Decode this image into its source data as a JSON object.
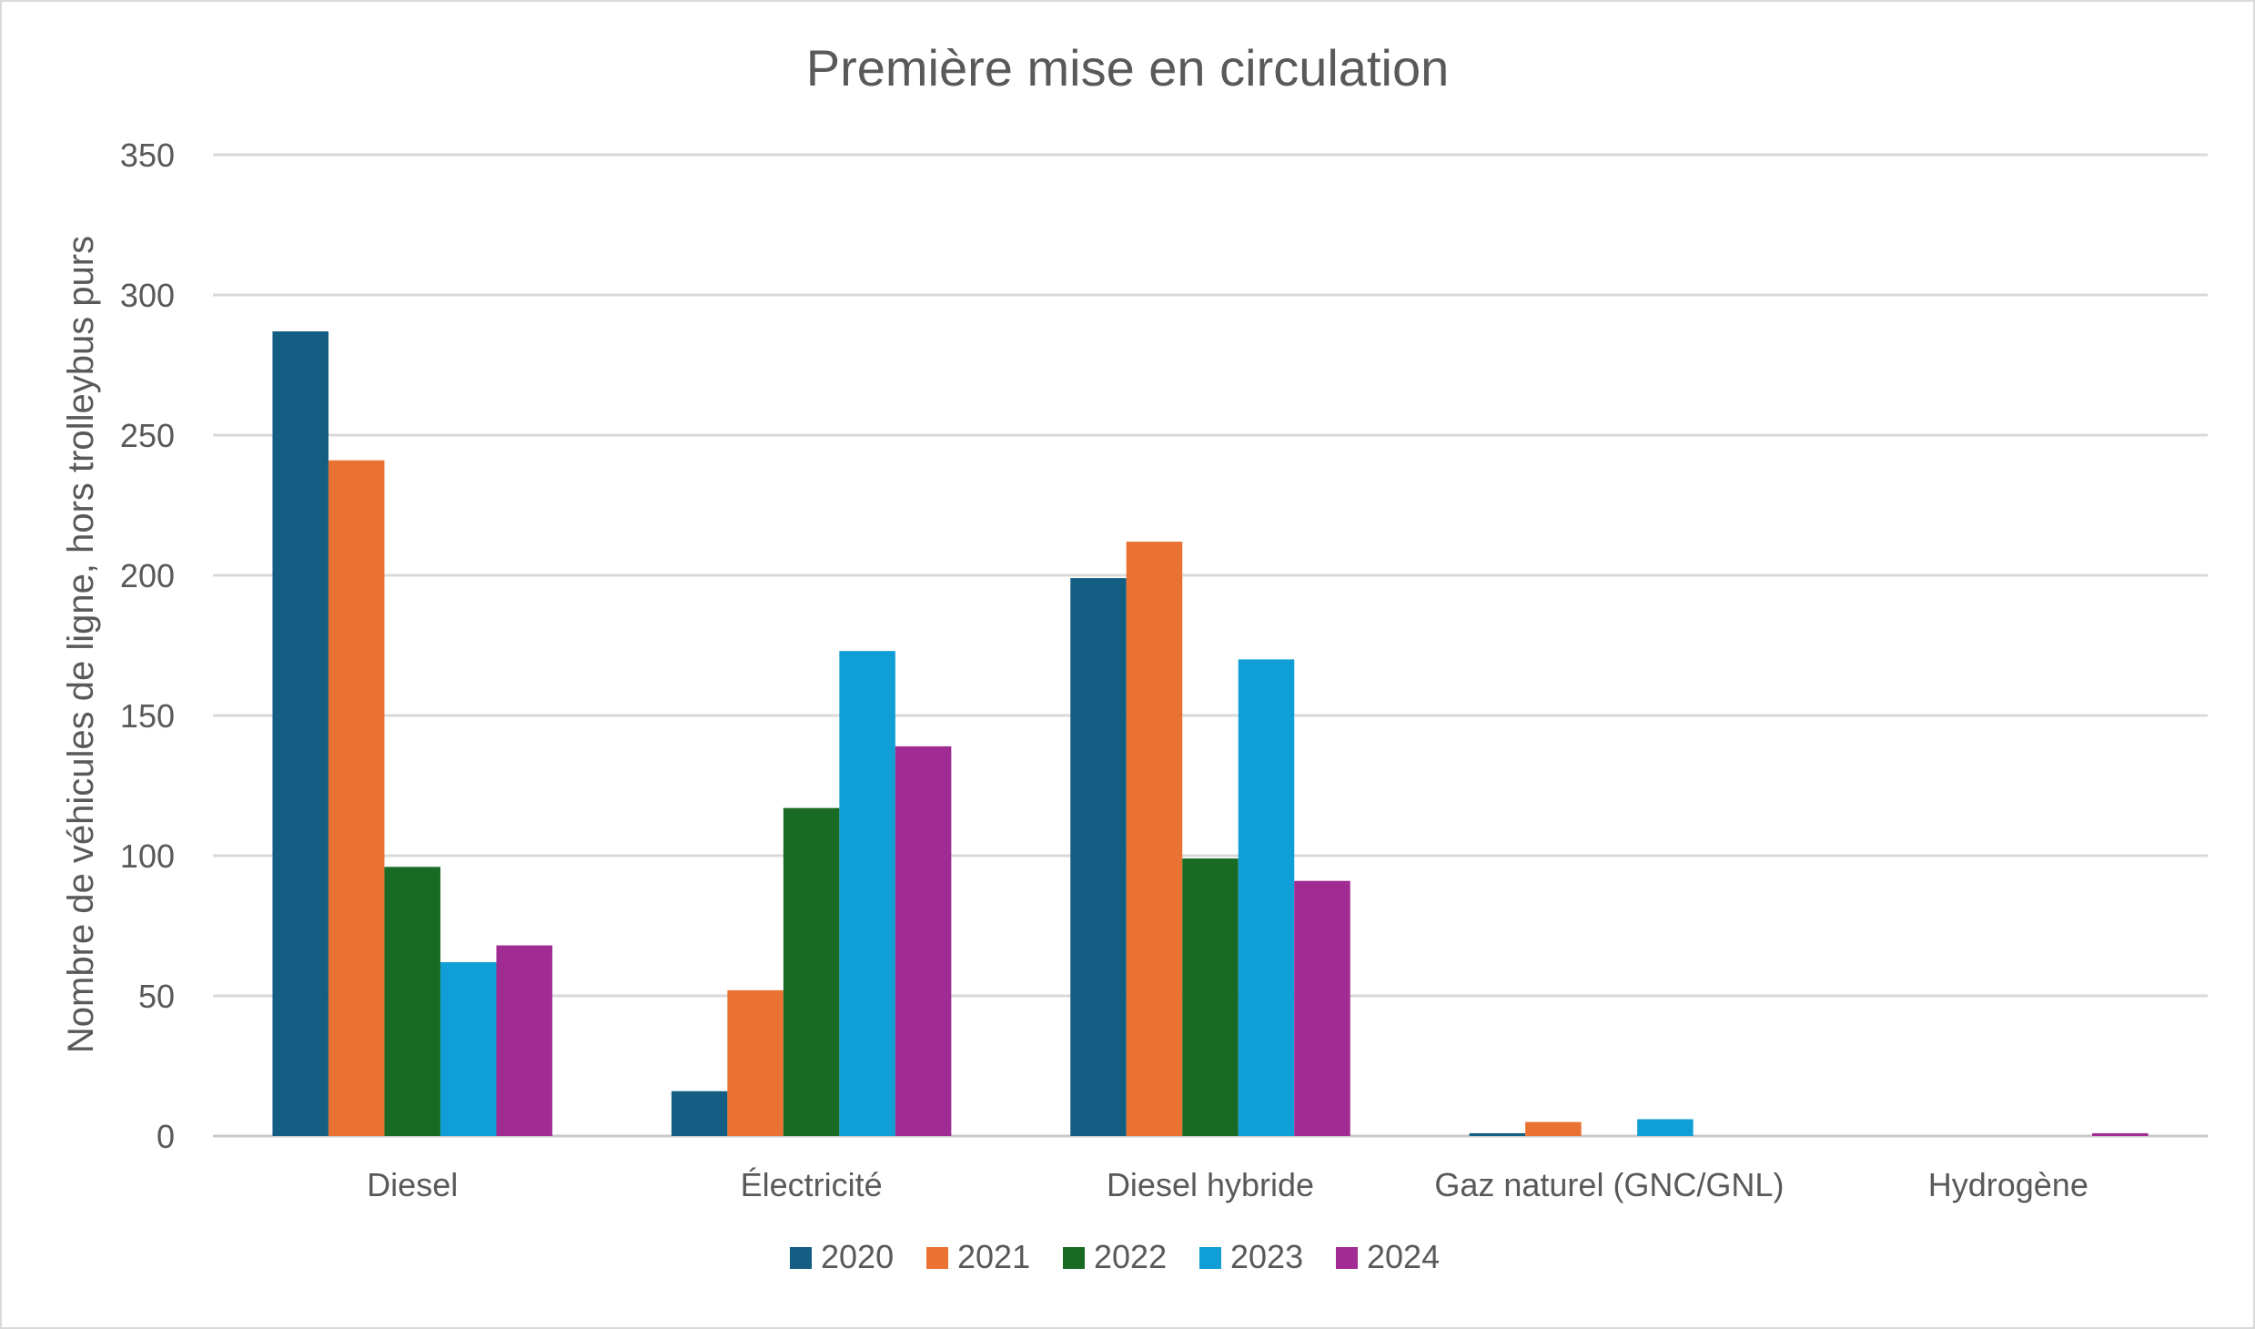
{
  "chart_data": {
    "type": "bar",
    "title": "Première mise en circulation",
    "xlabel": "",
    "ylabel": "Nombre de véhicules de ligne, hors trolleybus purs",
    "ylim": [
      0,
      350
    ],
    "yticks": [
      0,
      50,
      100,
      150,
      200,
      250,
      300,
      350
    ],
    "grid": true,
    "legend_position": "bottom",
    "categories": [
      "Diesel",
      "Électricité",
      "Diesel hybride",
      "Gaz naturel (GNC/GNL)",
      "Hydrogène"
    ],
    "series": [
      {
        "name": "2020",
        "color": "#135e82",
        "values": [
          287,
          16,
          199,
          1,
          0
        ]
      },
      {
        "name": "2021",
        "color": "#e97132",
        "values": [
          241,
          52,
          212,
          5,
          0
        ]
      },
      {
        "name": "2022",
        "color": "#196b24",
        "values": [
          96,
          117,
          99,
          0,
          0
        ]
      },
      {
        "name": "2023",
        "color": "#0f9ed5",
        "values": [
          62,
          173,
          170,
          6,
          0
        ]
      },
      {
        "name": "2024",
        "color": "#a02b93",
        "values": [
          68,
          139,
          91,
          0,
          1
        ]
      }
    ]
  }
}
